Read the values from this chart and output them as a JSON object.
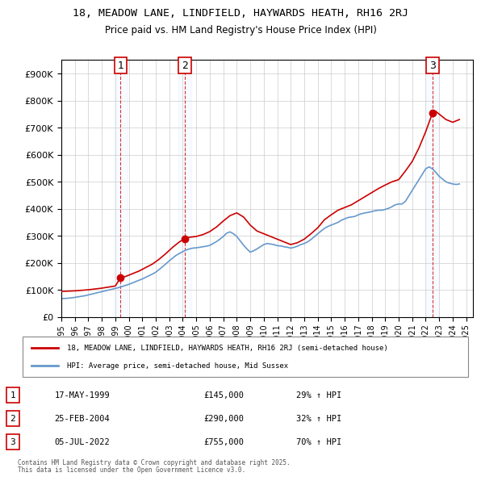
{
  "title": "18, MEADOW LANE, LINDFIELD, HAYWARDS HEATH, RH16 2RJ",
  "subtitle": "Price paid vs. HM Land Registry's House Price Index (HPI)",
  "ylabel": "",
  "xlabel": "",
  "ylim": [
    0,
    950000
  ],
  "yticks": [
    0,
    100000,
    200000,
    300000,
    400000,
    500000,
    600000,
    700000,
    800000,
    900000
  ],
  "ytick_labels": [
    "£0",
    "£100K",
    "£200K",
    "£300K",
    "£400K",
    "£500K",
    "£600K",
    "£700K",
    "£800K",
    "£900K"
  ],
  "xlim_start": 1995.0,
  "xlim_end": 2025.5,
  "purchases": [
    {
      "num": 1,
      "date_str": "17-MAY-1999",
      "year": 1999.38,
      "price": 145000,
      "pct": "29%",
      "dir": "↑"
    },
    {
      "num": 2,
      "date_str": "25-FEB-2004",
      "year": 2004.15,
      "price": 290000,
      "pct": "32%",
      "dir": "↑"
    },
    {
      "num": 3,
      "date_str": "05-JUL-2022",
      "year": 2022.51,
      "price": 755000,
      "pct": "70%",
      "dir": "↑"
    }
  ],
  "legend_property": "18, MEADOW LANE, LINDFIELD, HAYWARDS HEATH, RH16 2RJ (semi-detached house)",
  "legend_hpi": "HPI: Average price, semi-detached house, Mid Sussex",
  "footer1": "Contains HM Land Registry data © Crown copyright and database right 2025.",
  "footer2": "This data is licensed under the Open Government Licence v3.0.",
  "property_color": "#cc0000",
  "hpi_color": "#6699cc",
  "background_color": "#ffffff",
  "grid_color": "#cccccc",
  "purchase_vline_color": "#cc0000",
  "purchase_box_color": "#cc0000",
  "hpi_data_x": [
    1995.0,
    1995.25,
    1995.5,
    1995.75,
    1996.0,
    1996.25,
    1996.5,
    1996.75,
    1997.0,
    1997.25,
    1997.5,
    1997.75,
    1998.0,
    1998.25,
    1998.5,
    1998.75,
    1999.0,
    1999.25,
    1999.5,
    1999.75,
    2000.0,
    2000.25,
    2000.5,
    2000.75,
    2001.0,
    2001.25,
    2001.5,
    2001.75,
    2002.0,
    2002.25,
    2002.5,
    2002.75,
    2003.0,
    2003.25,
    2003.5,
    2003.75,
    2004.0,
    2004.25,
    2004.5,
    2004.75,
    2005.0,
    2005.25,
    2005.5,
    2005.75,
    2006.0,
    2006.25,
    2006.5,
    2006.75,
    2007.0,
    2007.25,
    2007.5,
    2007.75,
    2008.0,
    2008.25,
    2008.5,
    2008.75,
    2009.0,
    2009.25,
    2009.5,
    2009.75,
    2010.0,
    2010.25,
    2010.5,
    2010.75,
    2011.0,
    2011.25,
    2011.5,
    2011.75,
    2012.0,
    2012.25,
    2012.5,
    2012.75,
    2013.0,
    2013.25,
    2013.5,
    2013.75,
    2014.0,
    2014.25,
    2014.5,
    2014.75,
    2015.0,
    2015.25,
    2015.5,
    2015.75,
    2016.0,
    2016.25,
    2016.5,
    2016.75,
    2017.0,
    2017.25,
    2017.5,
    2017.75,
    2018.0,
    2018.25,
    2018.5,
    2018.75,
    2019.0,
    2019.25,
    2019.5,
    2019.75,
    2020.0,
    2020.25,
    2020.5,
    2020.75,
    2021.0,
    2021.25,
    2021.5,
    2021.75,
    2022.0,
    2022.25,
    2022.5,
    2022.75,
    2023.0,
    2023.25,
    2023.5,
    2023.75,
    2024.0,
    2024.25,
    2024.5
  ],
  "hpi_data_y": [
    68000,
    69000,
    70000,
    71000,
    73000,
    75000,
    77000,
    79000,
    82000,
    85000,
    88000,
    91000,
    94000,
    97000,
    100000,
    103000,
    106000,
    109000,
    113000,
    117000,
    121000,
    126000,
    131000,
    136000,
    141000,
    147000,
    153000,
    159000,
    166000,
    176000,
    186000,
    197000,
    208000,
    218000,
    228000,
    235000,
    242000,
    248000,
    252000,
    255000,
    256000,
    258000,
    260000,
    262000,
    265000,
    272000,
    279000,
    288000,
    298000,
    310000,
    315000,
    308000,
    298000,
    282000,
    266000,
    252000,
    240000,
    245000,
    252000,
    260000,
    268000,
    272000,
    270000,
    268000,
    264000,
    263000,
    260000,
    258000,
    255000,
    258000,
    262000,
    268000,
    272000,
    278000,
    287000,
    297000,
    308000,
    318000,
    328000,
    335000,
    340000,
    345000,
    350000,
    358000,
    363000,
    368000,
    370000,
    372000,
    378000,
    382000,
    385000,
    387000,
    390000,
    393000,
    395000,
    395000,
    398000,
    402000,
    408000,
    415000,
    418000,
    418000,
    428000,
    448000,
    468000,
    488000,
    508000,
    528000,
    548000,
    555000,
    548000,
    535000,
    520000,
    510000,
    500000,
    495000,
    492000,
    490000,
    492000
  ],
  "property_data_x": [
    1995.0,
    1995.5,
    1996.0,
    1996.5,
    1997.0,
    1997.5,
    1998.0,
    1998.5,
    1999.0,
    1999.38,
    1999.75,
    2000.25,
    2000.75,
    2001.25,
    2001.75,
    2002.25,
    2002.75,
    2003.25,
    2003.75,
    2004.15,
    2004.5,
    2005.0,
    2005.5,
    2006.0,
    2006.5,
    2007.0,
    2007.5,
    2008.0,
    2008.5,
    2009.0,
    2009.5,
    2010.0,
    2010.5,
    2011.0,
    2011.5,
    2012.0,
    2012.5,
    2013.0,
    2013.5,
    2014.0,
    2014.5,
    2015.0,
    2015.5,
    2016.0,
    2016.5,
    2017.0,
    2017.5,
    2018.0,
    2018.5,
    2019.0,
    2019.5,
    2020.0,
    2020.5,
    2021.0,
    2021.5,
    2022.0,
    2022.51,
    2022.75,
    2023.0,
    2023.5,
    2024.0,
    2024.5
  ],
  "property_data_y": [
    95000,
    96000,
    97000,
    99000,
    101000,
    104000,
    107000,
    111000,
    115000,
    145000,
    150000,
    160000,
    170000,
    183000,
    196000,
    214000,
    235000,
    258000,
    278000,
    290000,
    295000,
    298000,
    305000,
    316000,
    333000,
    355000,
    375000,
    385000,
    370000,
    340000,
    318000,
    308000,
    298000,
    288000,
    278000,
    268000,
    275000,
    288000,
    308000,
    330000,
    360000,
    378000,
    395000,
    405000,
    415000,
    430000,
    445000,
    460000,
    475000,
    488000,
    500000,
    508000,
    540000,
    575000,
    625000,
    685000,
    755000,
    760000,
    750000,
    730000,
    720000,
    730000
  ]
}
